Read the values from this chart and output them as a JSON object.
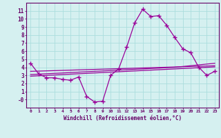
{
  "x": [
    0,
    1,
    2,
    3,
    4,
    5,
    6,
    7,
    8,
    9,
    10,
    11,
    12,
    13,
    14,
    15,
    16,
    17,
    18,
    19,
    20,
    21,
    22,
    23
  ],
  "y_main": [
    4.5,
    3.2,
    2.7,
    2.7,
    2.5,
    2.4,
    2.8,
    0.4,
    -0.3,
    -0.2,
    3.0,
    3.8,
    6.5,
    9.5,
    11.2,
    10.3,
    10.4,
    9.2,
    7.7,
    6.3,
    5.8,
    4.0,
    3.0,
    3.5
  ],
  "y_line1": [
    3.1,
    3.15,
    3.2,
    3.25,
    3.3,
    3.35,
    3.4,
    3.45,
    3.5,
    3.55,
    3.6,
    3.65,
    3.7,
    3.75,
    3.8,
    3.85,
    3.9,
    3.95,
    4.0,
    4.1,
    4.2,
    4.3,
    4.4,
    4.5
  ],
  "y_line2": [
    2.9,
    2.95,
    3.0,
    3.05,
    3.1,
    3.15,
    3.2,
    3.25,
    3.3,
    3.35,
    3.4,
    3.45,
    3.5,
    3.55,
    3.6,
    3.65,
    3.7,
    3.75,
    3.8,
    3.85,
    3.9,
    3.95,
    4.0,
    4.05
  ],
  "y_line3": [
    3.5,
    3.53,
    3.56,
    3.59,
    3.62,
    3.65,
    3.68,
    3.71,
    3.74,
    3.77,
    3.8,
    3.83,
    3.86,
    3.89,
    3.92,
    3.95,
    3.98,
    4.01,
    4.04,
    4.07,
    4.1,
    4.13,
    4.16,
    4.19
  ],
  "color": "#990099",
  "bg_color": "#d5f0f0",
  "grid_color": "#aadddd",
  "axis_color": "#660066",
  "xlabel": "Windchill (Refroidissement éolien,°C)",
  "ylim": [
    -1,
    12
  ],
  "xlim": [
    -0.5,
    23.5
  ],
  "yticks": [
    0,
    1,
    2,
    3,
    4,
    5,
    6,
    7,
    8,
    9,
    10,
    11
  ],
  "ytick_labels": [
    "-0",
    "1",
    "2",
    "3",
    "4",
    "5",
    "6",
    "7",
    "8",
    "9",
    "10",
    "11"
  ],
  "xtick_labels": [
    "0",
    "1",
    "2",
    "3",
    "4",
    "5",
    "6",
    "7",
    "8",
    "9",
    "10",
    "11",
    "12",
    "13",
    "14",
    "15",
    "16",
    "17",
    "18",
    "19",
    "20",
    "21",
    "22",
    "23"
  ],
  "marker": "+",
  "markersize": 4,
  "markeredgewidth": 1.0,
  "linewidth": 0.9
}
